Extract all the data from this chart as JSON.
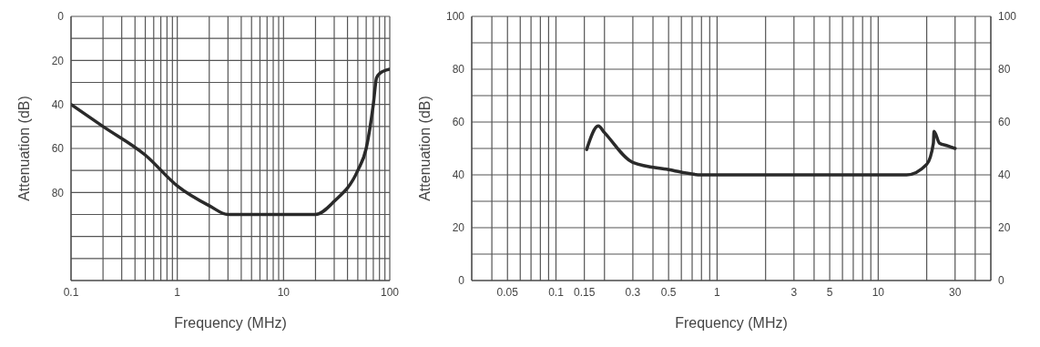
{
  "chart_data": [
    {
      "type": "line",
      "xlabel": "Frequency (MHz)",
      "ylabel": "Attenuation (dB)",
      "log": "x",
      "grid": true,
      "marker": "none",
      "line_style": "solid",
      "xlim": [
        0.1,
        100
      ],
      "xticks": [
        0.1,
        {
          "value": 0.2,
          "label": null
        },
        {
          "value": 0.3,
          "label": null
        },
        {
          "value": 0.4,
          "label": null
        },
        {
          "value": 0.5,
          "label": null
        },
        {
          "value": 0.6,
          "label": null
        },
        {
          "value": 0.7,
          "label": null
        },
        {
          "value": 0.8,
          "label": null
        },
        {
          "value": 0.9,
          "label": null
        },
        1,
        {
          "value": 2,
          "label": null
        },
        {
          "value": 3,
          "label": null
        },
        {
          "value": 4,
          "label": null
        },
        {
          "value": 5,
          "label": null
        },
        {
          "value": 6,
          "label": null
        },
        {
          "value": 7,
          "label": null
        },
        {
          "value": 8,
          "label": null
        },
        {
          "value": 9,
          "label": null
        },
        10,
        {
          "value": 20,
          "label": null
        },
        {
          "value": 30,
          "label": null
        },
        {
          "value": 40,
          "label": null
        },
        {
          "value": 50,
          "label": null
        },
        {
          "value": 60,
          "label": null
        },
        {
          "value": 70,
          "label": null
        },
        {
          "value": 80,
          "label": null
        },
        {
          "value": 90,
          "label": null
        },
        100
      ],
      "ylim": [
        120,
        0
      ],
      "yticks": [
        0,
        {
          "value": 10,
          "label": null
        },
        20,
        {
          "value": 30,
          "label": null
        },
        40,
        {
          "value": 50,
          "label": null
        },
        60,
        {
          "value": 70,
          "label": null
        },
        80,
        {
          "value": 90,
          "label": null
        },
        {
          "value": 100,
          "label": null
        },
        {
          "value": 110,
          "label": null
        },
        {
          "value": 120,
          "label": null
        }
      ],
      "series": [
        {
          "color": "#2a2a2a",
          "x": [
            0.1,
            0.2,
            0.5,
            1,
            2,
            3,
            5,
            10,
            20,
            30,
            50,
            60,
            70,
            75,
            80,
            100
          ],
          "values": [
            40,
            50,
            63,
            77,
            86,
            90,
            90,
            90,
            90,
            84,
            70,
            60,
            40,
            28,
            26,
            24
          ]
        }
      ]
    },
    {
      "type": "line",
      "xlabel": "Frequency (MHz)",
      "ylabel": "Attenuation (dB)",
      "log": "x",
      "grid": true,
      "marker": "none",
      "line_style": "solid",
      "xlim": [
        0.03,
        50
      ],
      "xticks": [
        {
          "value": 0.04,
          "label": null
        },
        0.05,
        {
          "value": 0.06,
          "label": null
        },
        {
          "value": 0.07,
          "label": null
        },
        {
          "value": 0.08,
          "label": null
        },
        {
          "value": 0.09,
          "label": null
        },
        0.1,
        0.15,
        {
          "value": 0.2,
          "label": null
        },
        0.3,
        {
          "value": 0.4,
          "label": null
        },
        0.5,
        {
          "value": 0.6,
          "label": null
        },
        {
          "value": 0.7,
          "label": null
        },
        {
          "value": 0.8,
          "label": null
        },
        {
          "value": 0.9,
          "label": null
        },
        1,
        {
          "value": 2,
          "label": null
        },
        3,
        {
          "value": 4,
          "label": null
        },
        5,
        {
          "value": 6,
          "label": null
        },
        {
          "value": 7,
          "label": null
        },
        {
          "value": 8,
          "label": null
        },
        {
          "value": 9,
          "label": null
        },
        10,
        {
          "value": 20,
          "label": null
        },
        30,
        {
          "value": 40,
          "label": null
        }
      ],
      "ylim": [
        0,
        100
      ],
      "yticks": [
        0,
        {
          "value": 10,
          "label": null
        },
        20,
        {
          "value": 30,
          "label": null
        },
        40,
        {
          "value": 50,
          "label": null
        },
        60,
        {
          "value": 70,
          "label": null
        },
        80,
        {
          "value": 90,
          "label": null
        },
        100
      ],
      "y2lim": [
        0,
        100
      ],
      "y2ticks": [
        0,
        20,
        40,
        60,
        80,
        100
      ],
      "series": [
        {
          "color": "#2a2a2a",
          "x": [
            0.155,
            0.183,
            0.2,
            0.3,
            0.5,
            0.8,
            1,
            10,
            15,
            20,
            22,
            22.2,
            24,
            27,
            30
          ],
          "values": [
            49.6,
            58.5,
            56,
            44.7,
            42,
            40,
            40,
            40,
            40,
            44,
            52,
            56.5,
            52,
            51,
            50
          ]
        }
      ]
    }
  ]
}
